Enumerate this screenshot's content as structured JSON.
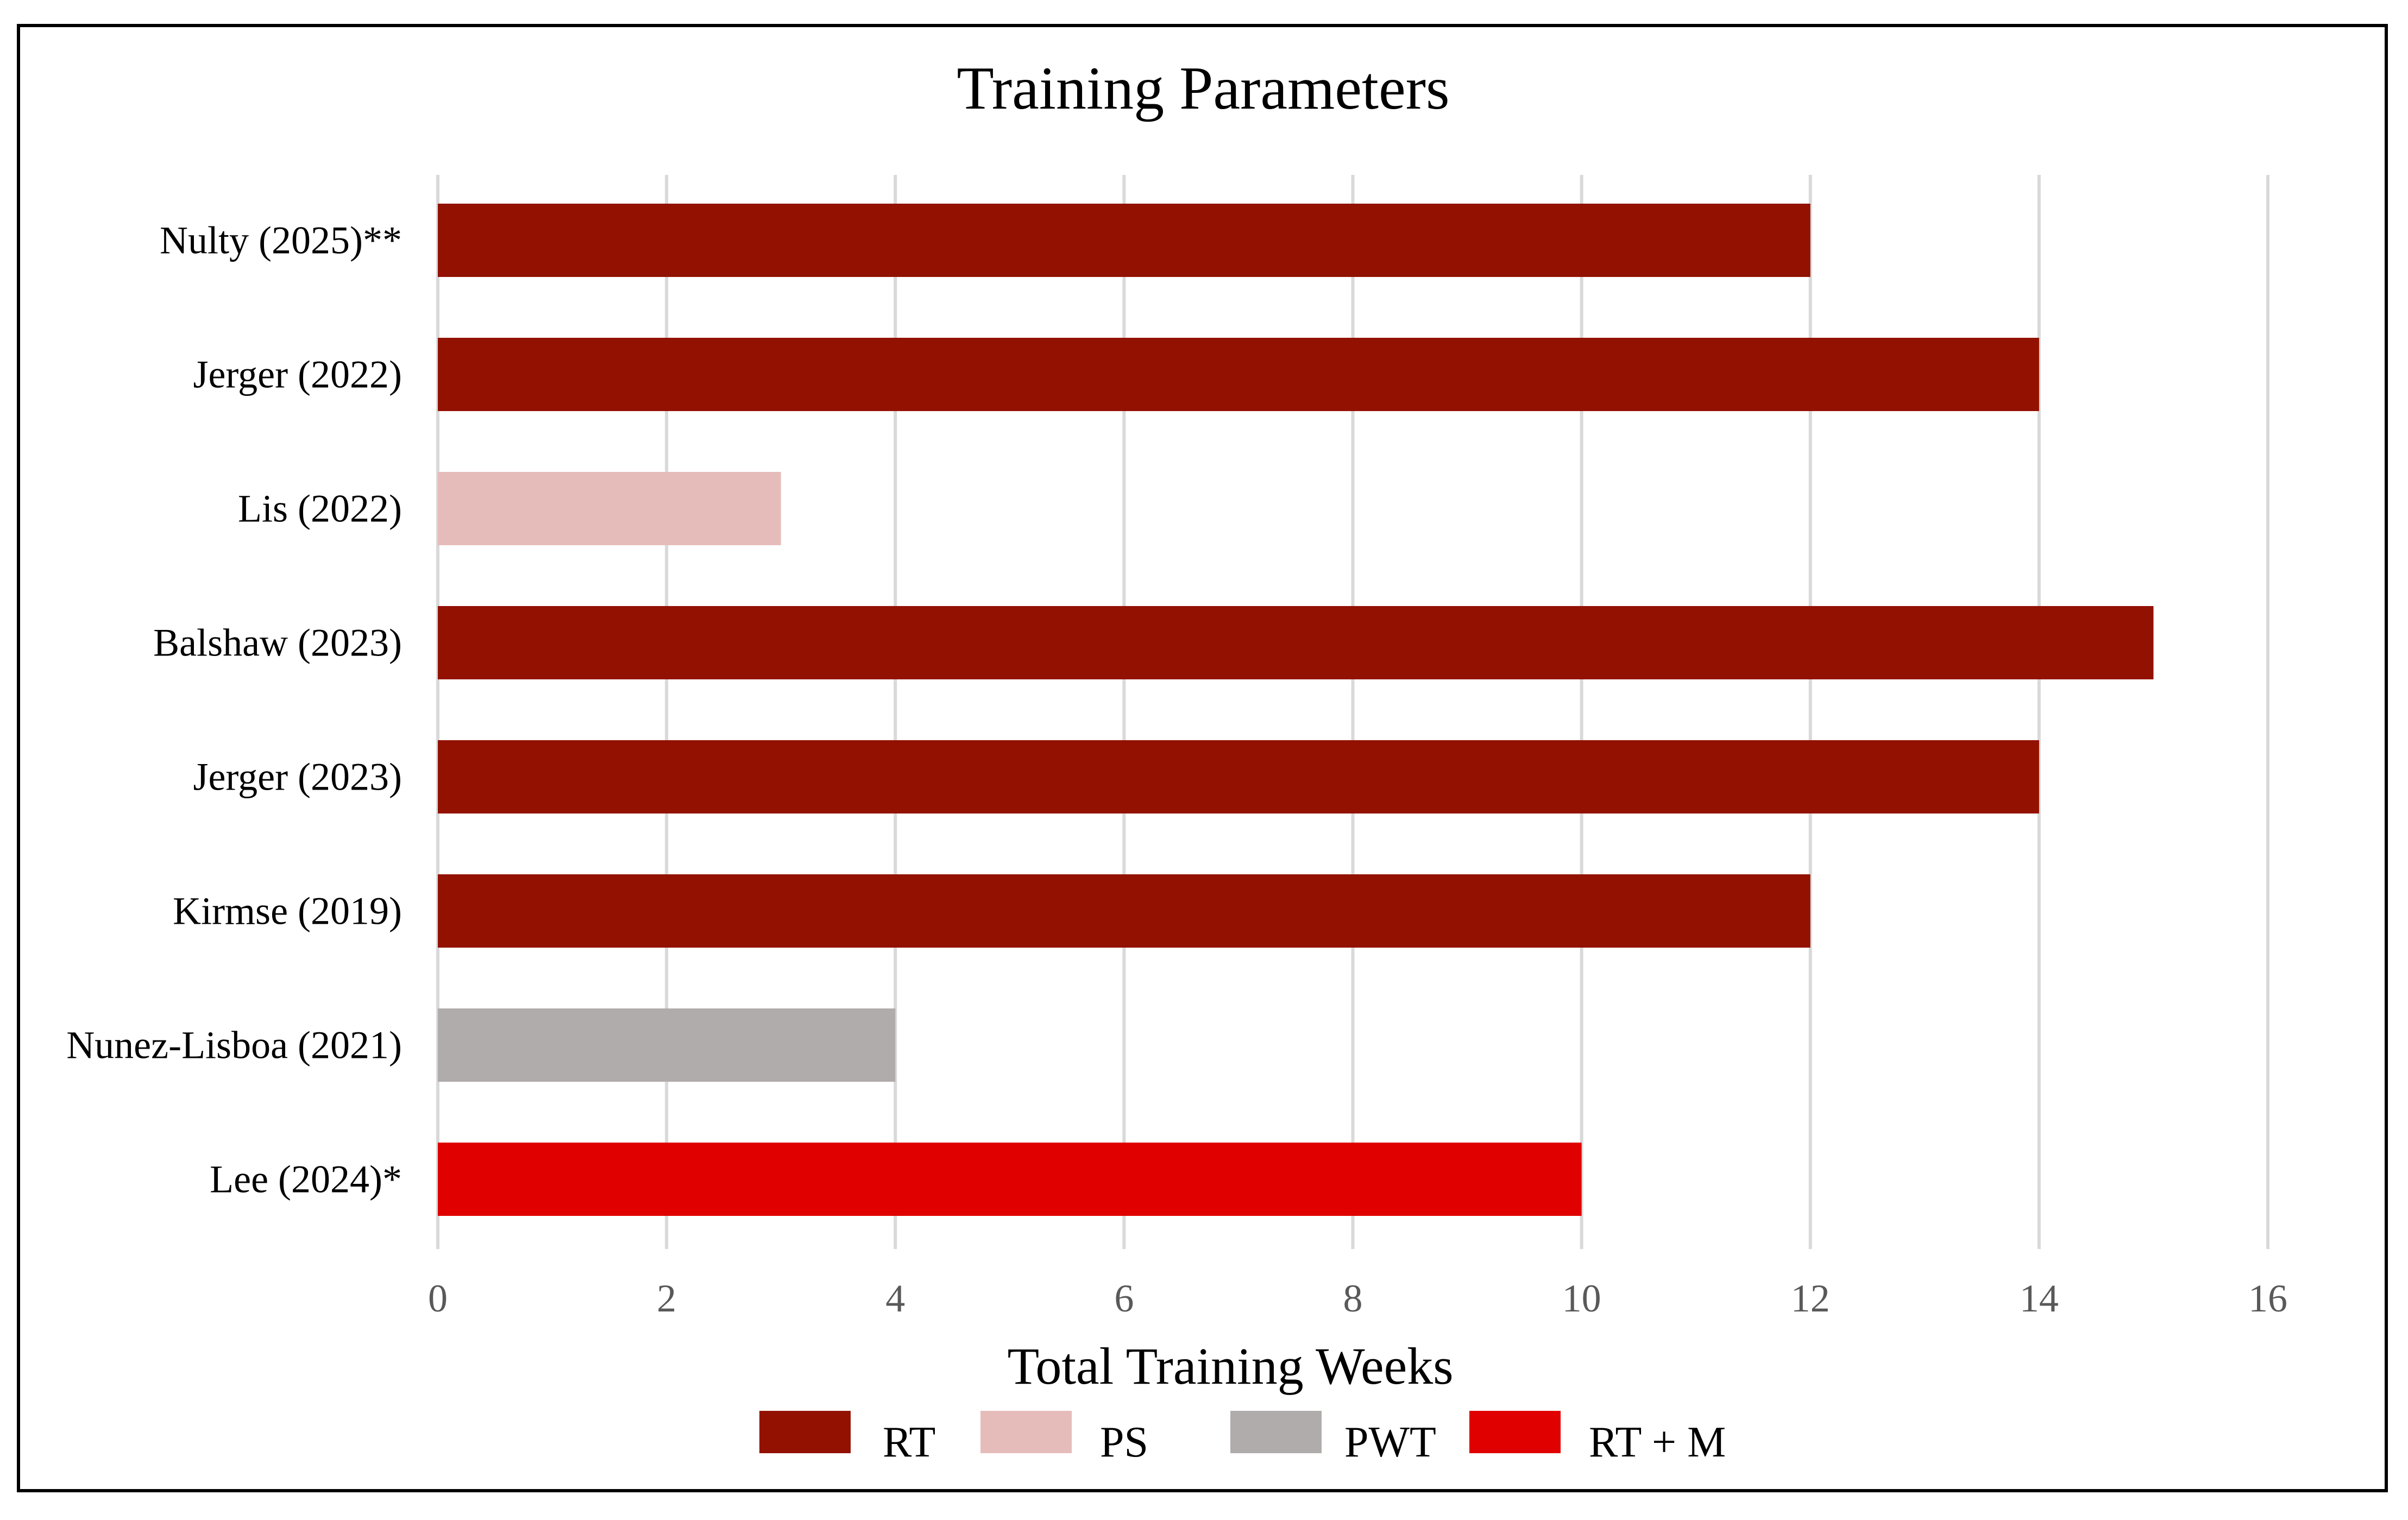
{
  "chart_data": {
    "type": "bar",
    "orientation": "horizontal",
    "title": "Training Parameters",
    "xlabel": "Total Training Weeks",
    "ylabel": "",
    "xlim": [
      0,
      16
    ],
    "x_ticks": [
      "0",
      "2",
      "4",
      "6",
      "8",
      "10",
      "12",
      "14",
      "16"
    ],
    "grid": "vertical",
    "legend_placement": "bottom",
    "categories": [
      "Nulty (2025)**",
      "Jerger (2022)",
      "Lis (2022)",
      "Balshaw (2023)",
      "Jerger (2023)",
      "Kirmse (2019)",
      "Nunez-Lisboa (2021)",
      "Lee (2024)*"
    ],
    "values": [
      12,
      14,
      3,
      15,
      14,
      12,
      4,
      10
    ],
    "bar_groups": [
      "RT",
      "RT",
      "PS",
      "RT",
      "RT",
      "RT",
      "PWT",
      "RT + M"
    ],
    "legend": [
      {
        "label": "RT",
        "color": "#921100"
      },
      {
        "label": "PS",
        "color": "#e6bcbb"
      },
      {
        "label": "PWT",
        "color": "#b0acab"
      },
      {
        "label": "RT + M",
        "color": "#e00000"
      }
    ]
  }
}
